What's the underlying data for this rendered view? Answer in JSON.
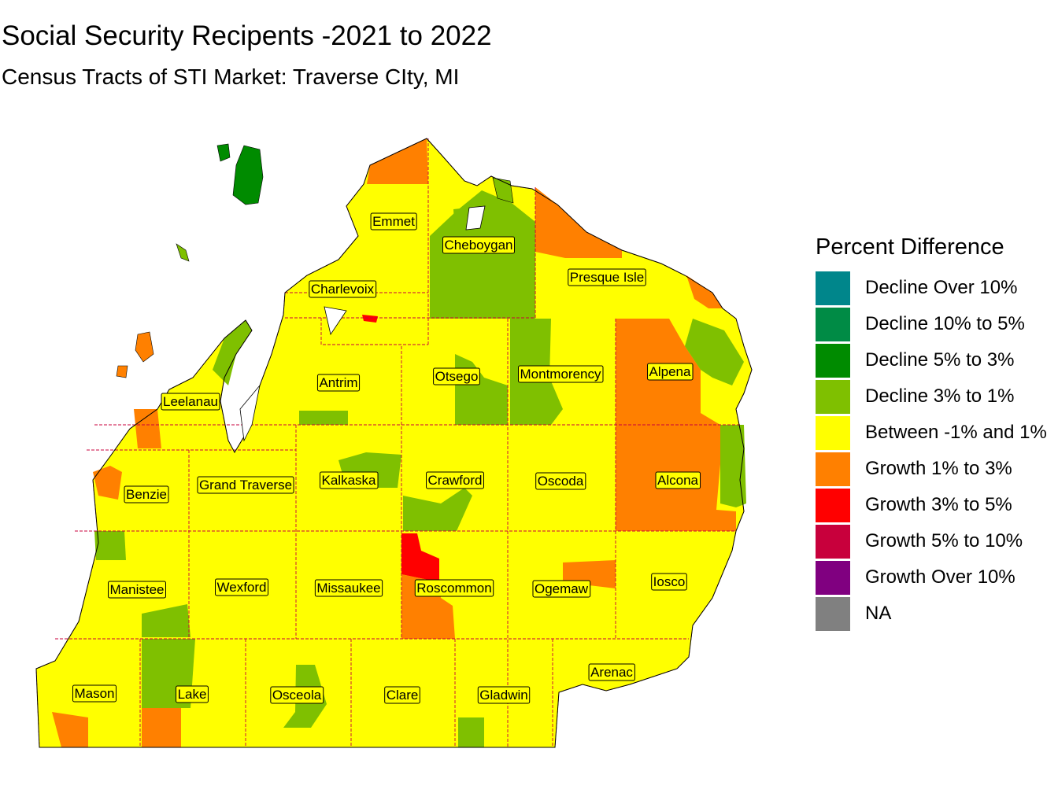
{
  "title": "Social Security Recipents -2021 to 2022",
  "subtitle": "Census Tracts of STI Market: Traverse CIty, MI",
  "legend": {
    "title": "Percent Difference",
    "items": [
      {
        "label": "Decline Over 10%",
        "color": "#00868B"
      },
      {
        "label": "Decline 10% to 5%",
        "color": "#008B45"
      },
      {
        "label": "Decline 5% to 3%",
        "color": "#008B00"
      },
      {
        "label": "Decline 3% to 1%",
        "color": "#7FC000"
      },
      {
        "label": "Between -1% and 1%",
        "color": "#FFFF00"
      },
      {
        "label": "Growth 1% to 3%",
        "color": "#FF8000"
      },
      {
        "label": "Growth 3% to 5%",
        "color": "#FF0000"
      },
      {
        "label": "Growth 5% to 10%",
        "color": "#C8003C"
      },
      {
        "label": "Growth Over 10%",
        "color": "#800080"
      },
      {
        "label": "NA",
        "color": "#808080"
      }
    ]
  },
  "counties": [
    "Emmet",
    "Cheboygan",
    "Presque Isle",
    "Charlevoix",
    "Antrim",
    "Otsego",
    "Montmorency",
    "Alpena",
    "Leelanau",
    "Benzie",
    "Grand Traverse",
    "Kalkaska",
    "Crawford",
    "Oscoda",
    "Alcona",
    "Manistee",
    "Wexford",
    "Missaukee",
    "Roscommon",
    "Ogemaw",
    "Iosco",
    "Mason",
    "Lake",
    "Osceola",
    "Clare",
    "Gladwin",
    "Arenac"
  ]
}
